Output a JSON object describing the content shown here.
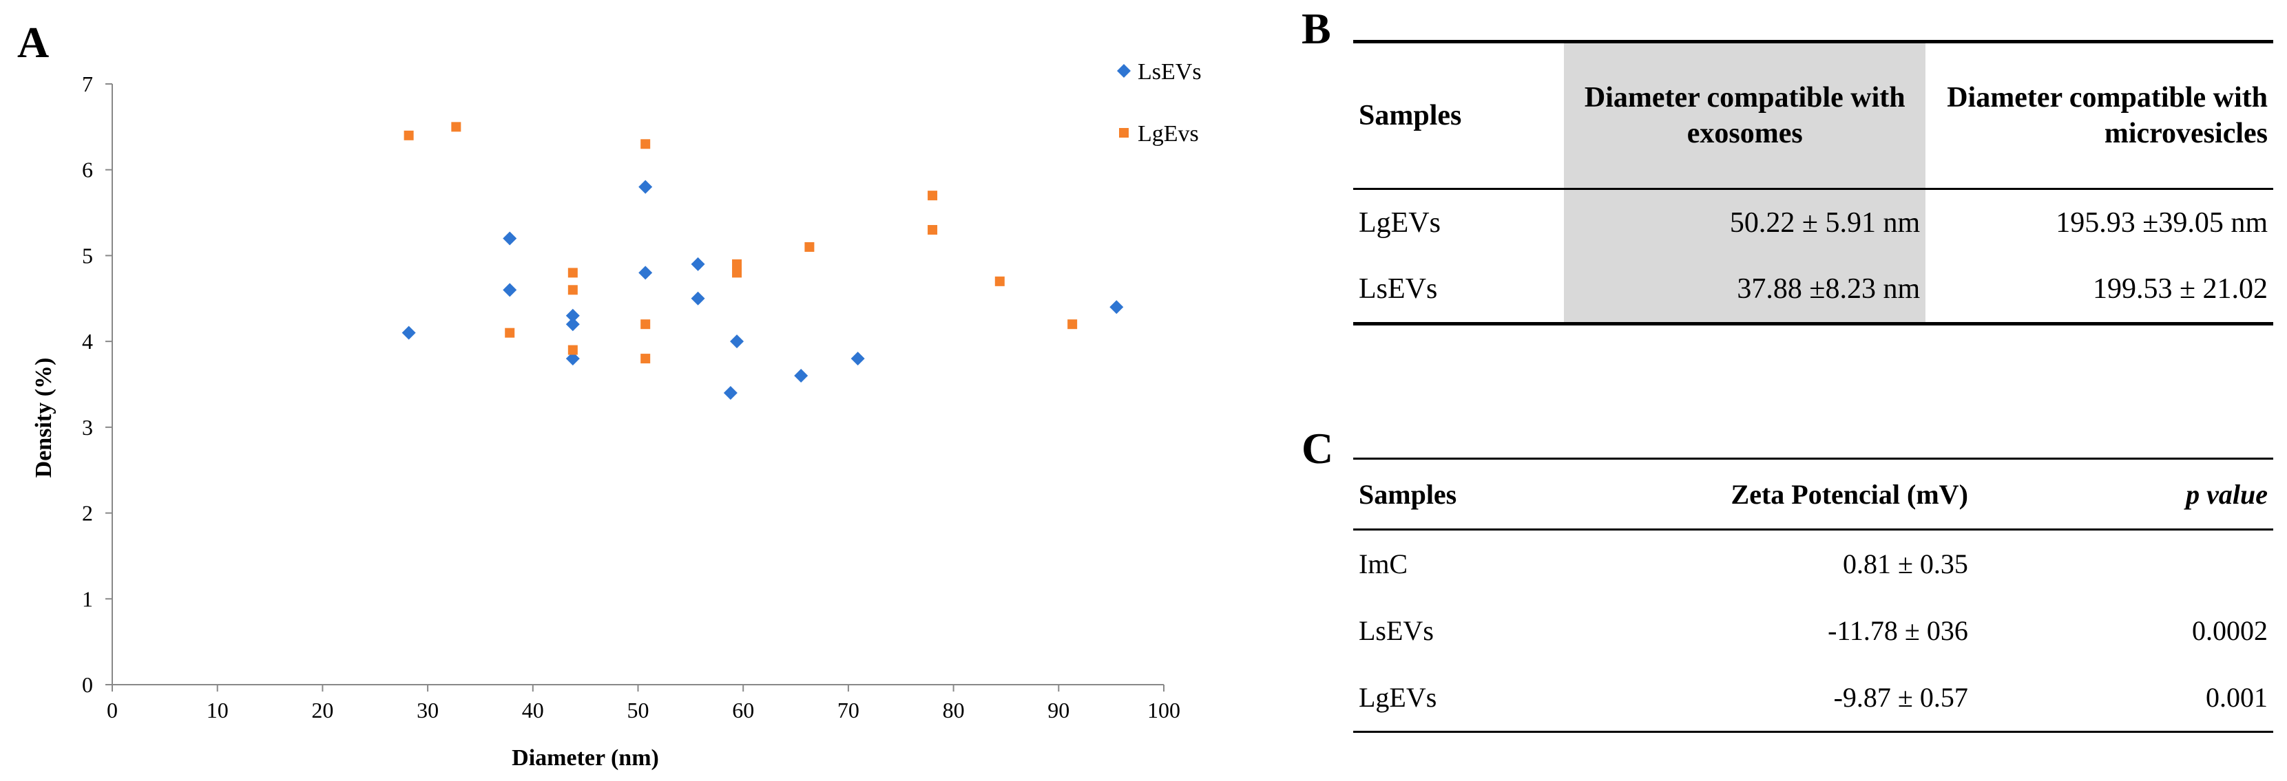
{
  "panels": {
    "a": "A",
    "b": "B",
    "c": "C"
  },
  "chart_data": {
    "type": "scatter",
    "title": "",
    "xlabel": "Diameter  (nm)",
    "ylabel": "Density (%)",
    "xlim": [
      0,
      100
    ],
    "ylim": [
      0,
      7
    ],
    "xticks": [
      0,
      10,
      20,
      30,
      40,
      50,
      60,
      70,
      80,
      90,
      100
    ],
    "yticks": [
      0,
      1,
      2,
      3,
      4,
      5,
      6,
      7
    ],
    "grid": false,
    "legend_position": "top-right",
    "series": [
      {
        "name": "LsEVs",
        "marker": "diamond",
        "color": "#2e75d2",
        "points": [
          [
            28.2,
            4.1
          ],
          [
            37.8,
            5.2
          ],
          [
            37.8,
            4.6
          ],
          [
            43.8,
            4.3
          ],
          [
            43.8,
            4.2
          ],
          [
            43.8,
            3.8
          ],
          [
            50.7,
            5.8
          ],
          [
            50.7,
            4.8
          ],
          [
            55.7,
            4.9
          ],
          [
            55.7,
            4.5
          ],
          [
            58.8,
            3.4
          ],
          [
            59.4,
            4.0
          ],
          [
            65.5,
            3.6
          ],
          [
            70.9,
            3.8
          ],
          [
            95.5,
            4.4
          ]
        ]
      },
      {
        "name": "LgEvs",
        "marker": "square",
        "color": "#f5802a",
        "points": [
          [
            28.2,
            6.4
          ],
          [
            32.7,
            6.5
          ],
          [
            37.8,
            4.1
          ],
          [
            43.8,
            4.8
          ],
          [
            43.8,
            4.6
          ],
          [
            43.8,
            3.9
          ],
          [
            50.7,
            6.3
          ],
          [
            50.7,
            4.2
          ],
          [
            50.7,
            3.8
          ],
          [
            59.4,
            4.9
          ],
          [
            59.4,
            4.8
          ],
          [
            66.3,
            5.1
          ],
          [
            78.0,
            5.7
          ],
          [
            78.0,
            5.3
          ],
          [
            84.4,
            4.7
          ],
          [
            91.3,
            4.2
          ]
        ]
      }
    ]
  },
  "table_b": {
    "headers": [
      "Samples",
      "Diameter compatible with exosomes",
      "Diameter compatible with microvesicles"
    ],
    "rows": [
      [
        "LgEVs",
        "50.22 ± 5.91 nm",
        "195.93 ±39.05 nm"
      ],
      [
        "LsEVs",
        "37.88 ±8.23 nm",
        "199.53 ± 21.02"
      ]
    ]
  },
  "table_c": {
    "headers": [
      "Samples",
      "Zeta Potencial (mV)",
      "p value"
    ],
    "rows": [
      [
        "ImC",
        "0.81 ± 0.35",
        ""
      ],
      [
        "LsEVs",
        "-11.78 ± 036",
        "0.0002"
      ],
      [
        "LgEVs",
        "-9.87 ± 0.57",
        "0.001"
      ]
    ]
  }
}
